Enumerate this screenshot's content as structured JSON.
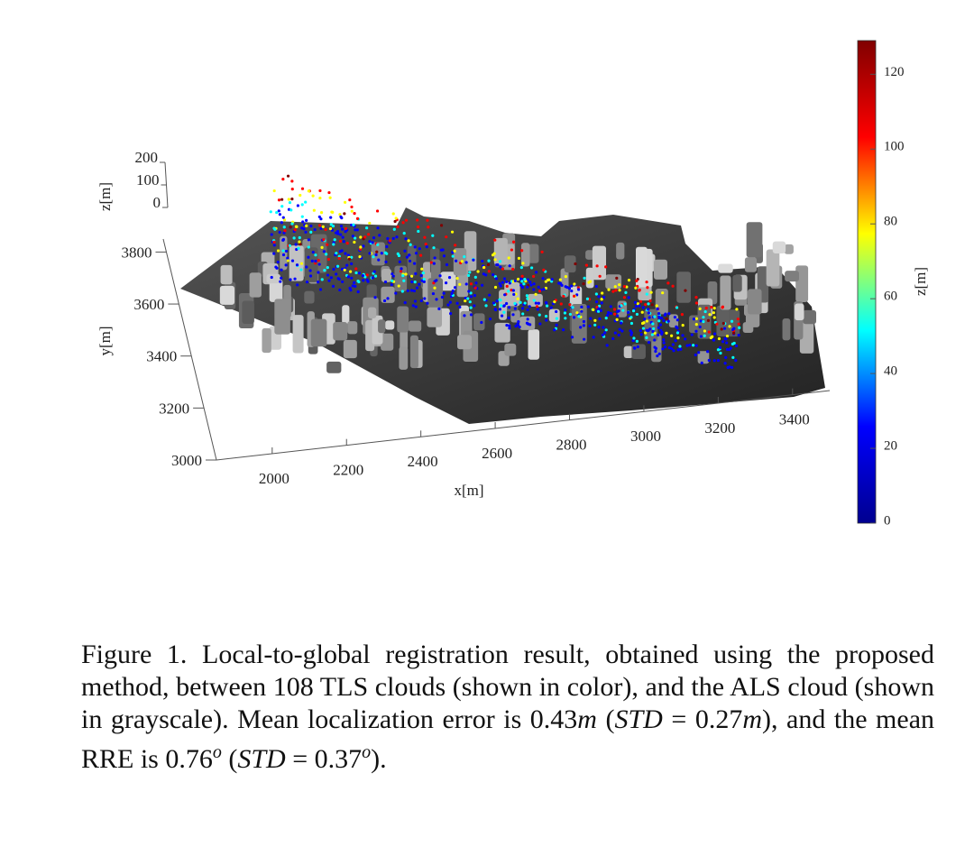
{
  "figure": {
    "x_label": "x[m]",
    "y_label": "y[m]",
    "z_label": "z[m]",
    "colorbar_label": "z[m]",
    "xlim": [
      1850,
      3500
    ],
    "xticks": [
      2000,
      2200,
      2400,
      2600,
      2800,
      3000,
      3200,
      3400
    ],
    "ylim": [
      3000,
      3850
    ],
    "yticks": [
      3000,
      3200,
      3400,
      3600,
      3800
    ],
    "zlim": [
      0,
      200
    ],
    "zticks": [
      0,
      100,
      200
    ],
    "clim": [
      0,
      129
    ],
    "cticks": [
      0,
      20,
      40,
      60,
      80,
      100,
      120
    ],
    "colormap": [
      "#00008f",
      "#0000ff",
      "#00ffff",
      "#ffff00",
      "#ff0000",
      "#800000"
    ]
  },
  "caption": [
    {
      "text": "Figure 1. Local-to-global registration result, obtained using the proposed method, between 108 TLS clouds (shown in color), and the ALS cloud (shown in grayscale). Mean localization error is "
    },
    {
      "text": "0.43"
    },
    {
      "text": "m",
      "math": true
    },
    {
      "text": " ("
    },
    {
      "text": "STD",
      "math": true
    },
    {
      "text": " = 0.27"
    },
    {
      "text": "m",
      "math": true
    },
    {
      "text": "), and the mean RRE is 0.76"
    },
    {
      "text": "o",
      "sup": true,
      "math": true
    },
    {
      "text": " ("
    },
    {
      "text": "STD",
      "math": true
    },
    {
      "text": " = 0.37"
    },
    {
      "text": "o",
      "sup": true,
      "math": true
    },
    {
      "text": ")."
    }
  ]
}
